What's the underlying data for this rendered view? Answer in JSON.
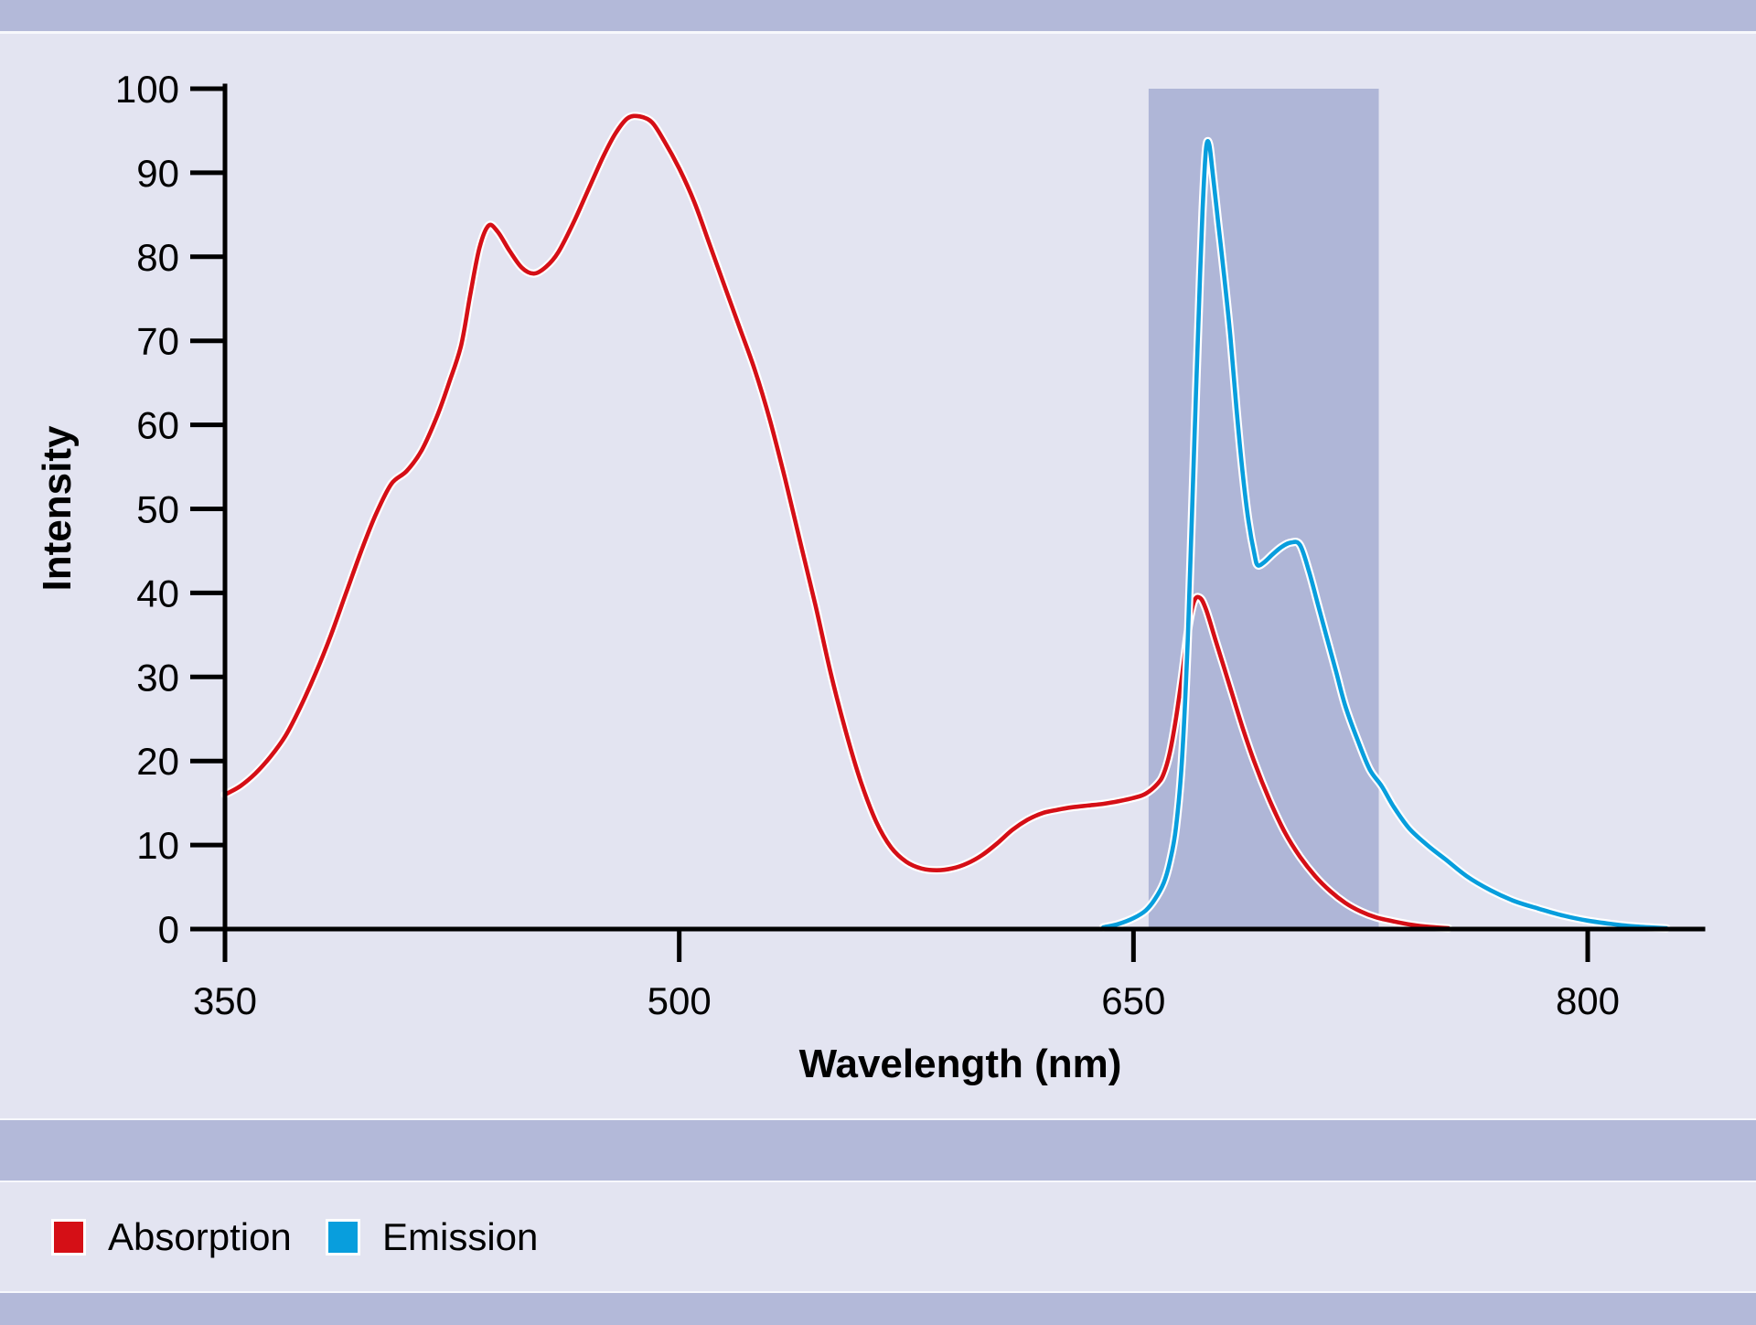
{
  "figure": {
    "background_color": "#e3e4f1",
    "divider_bar_color": "#b3b9d9"
  },
  "chart_data": {
    "type": "line",
    "title": "",
    "xlabel": "Wavelength (nm)",
    "ylabel": "Intensity",
    "xlim": [
      350,
      838
    ],
    "ylim": [
      0,
      100
    ],
    "x_ticks": [
      350,
      500,
      650,
      800
    ],
    "y_ticks": [
      0,
      10,
      20,
      30,
      40,
      50,
      60,
      70,
      80,
      90,
      100
    ],
    "grid": false,
    "legend_position": "bottom",
    "filter_band": {
      "from_nm": 655,
      "to_nm": 731,
      "color": "#afb6d7"
    },
    "series": [
      {
        "name": "Absorption",
        "color": "#d50f16",
        "points": [
          [
            350,
            16
          ],
          [
            355,
            17
          ],
          [
            360,
            18.5
          ],
          [
            365,
            20.5
          ],
          [
            370,
            23
          ],
          [
            375,
            26.5
          ],
          [
            380,
            30.5
          ],
          [
            385,
            35
          ],
          [
            390,
            40
          ],
          [
            395,
            45
          ],
          [
            400,
            49.5
          ],
          [
            405,
            53
          ],
          [
            410,
            54.5
          ],
          [
            415,
            57
          ],
          [
            420,
            61
          ],
          [
            424,
            65
          ],
          [
            428,
            69.5
          ],
          [
            431,
            75.5
          ],
          [
            434,
            81
          ],
          [
            437,
            83.7
          ],
          [
            440,
            83
          ],
          [
            444,
            80.7
          ],
          [
            448,
            78.7
          ],
          [
            452,
            78
          ],
          [
            456,
            78.8
          ],
          [
            460,
            80.5
          ],
          [
            465,
            84
          ],
          [
            470,
            88
          ],
          [
            475,
            92
          ],
          [
            479,
            94.7
          ],
          [
            483,
            96.5
          ],
          [
            487,
            96.7
          ],
          [
            491,
            96
          ],
          [
            495,
            93.8
          ],
          [
            500,
            90.5
          ],
          [
            505,
            86.5
          ],
          [
            510,
            81.5
          ],
          [
            515,
            76.5
          ],
          [
            520,
            71.5
          ],
          [
            525,
            66.5
          ],
          [
            530,
            60.5
          ],
          [
            535,
            53.5
          ],
          [
            540,
            46
          ],
          [
            545,
            38.5
          ],
          [
            550,
            30.5
          ],
          [
            555,
            23.5
          ],
          [
            560,
            17.5
          ],
          [
            565,
            12.8
          ],
          [
            570,
            9.7
          ],
          [
            575,
            8
          ],
          [
            580,
            7.2
          ],
          [
            585,
            7
          ],
          [
            590,
            7.2
          ],
          [
            595,
            7.8
          ],
          [
            600,
            8.8
          ],
          [
            605,
            10.2
          ],
          [
            610,
            11.8
          ],
          [
            615,
            13
          ],
          [
            620,
            13.8
          ],
          [
            625,
            14.2
          ],
          [
            630,
            14.5
          ],
          [
            635,
            14.7
          ],
          [
            640,
            14.9
          ],
          [
            645,
            15.2
          ],
          [
            650,
            15.6
          ],
          [
            654,
            16.1
          ],
          [
            658,
            17.3
          ],
          [
            660,
            18.5
          ],
          [
            662,
            21
          ],
          [
            664,
            25
          ],
          [
            666,
            30
          ],
          [
            668,
            35.5
          ],
          [
            670,
            39
          ],
          [
            672,
            39.4
          ],
          [
            674,
            38
          ],
          [
            677,
            34.5
          ],
          [
            680,
            31
          ],
          [
            683,
            27.5
          ],
          [
            686,
            24
          ],
          [
            690,
            19.8
          ],
          [
            695,
            15.3
          ],
          [
            700,
            11.5
          ],
          [
            705,
            8.6
          ],
          [
            710,
            6.3
          ],
          [
            715,
            4.5
          ],
          [
            720,
            3.1
          ],
          [
            725,
            2.1
          ],
          [
            730,
            1.4
          ],
          [
            736,
            0.9
          ],
          [
            742,
            0.5
          ],
          [
            748,
            0.25
          ],
          [
            754,
            0.1
          ]
        ]
      },
      {
        "name": "Emission",
        "color": "#089edd",
        "points": [
          [
            640,
            0.2
          ],
          [
            645,
            0.6
          ],
          [
            650,
            1.3
          ],
          [
            654,
            2.2
          ],
          [
            657,
            3.5
          ],
          [
            660,
            5.5
          ],
          [
            662,
            8
          ],
          [
            664,
            12
          ],
          [
            666,
            20
          ],
          [
            668,
            35
          ],
          [
            670,
            57
          ],
          [
            672,
            78
          ],
          [
            673,
            87
          ],
          [
            674,
            93
          ],
          [
            675,
            93.4
          ],
          [
            676,
            90.5
          ],
          [
            678,
            84
          ],
          [
            680,
            77.5
          ],
          [
            682,
            70.5
          ],
          [
            684,
            62
          ],
          [
            686,
            54.5
          ],
          [
            688,
            48.5
          ],
          [
            690,
            44.5
          ],
          [
            691,
            43.3
          ],
          [
            693,
            43.6
          ],
          [
            696,
            44.6
          ],
          [
            699,
            45.5
          ],
          [
            702,
            46
          ],
          [
            705,
            45.7
          ],
          [
            708,
            42.5
          ],
          [
            711,
            38.5
          ],
          [
            714,
            34.5
          ],
          [
            717,
            30.5
          ],
          [
            720,
            26.5
          ],
          [
            724,
            22.5
          ],
          [
            728,
            19
          ],
          [
            732,
            17
          ],
          [
            736,
            14.5
          ],
          [
            741,
            12
          ],
          [
            747,
            10
          ],
          [
            753,
            8.3
          ],
          [
            760,
            6.3
          ],
          [
            768,
            4.6
          ],
          [
            776,
            3.3
          ],
          [
            784,
            2.4
          ],
          [
            792,
            1.6
          ],
          [
            800,
            1
          ],
          [
            808,
            0.6
          ],
          [
            816,
            0.3
          ],
          [
            826,
            0.1
          ]
        ]
      }
    ]
  },
  "legend": {
    "items": [
      {
        "label": "Absorption",
        "color": "#d50f16"
      },
      {
        "label": "Emission",
        "color": "#089edd"
      }
    ]
  }
}
